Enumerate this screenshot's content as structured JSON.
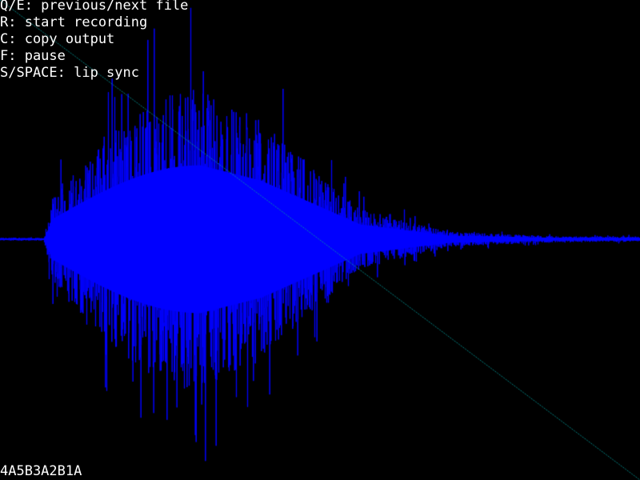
{
  "help": [
    "Q/E: previous/next file",
    "R: start recording",
    "C: copy output",
    "F: pause",
    "S/SPACE: lip sync"
  ],
  "output": "4A5B3A2B1A",
  "colors": {
    "background": "#000000",
    "text": "#ffffff",
    "waveform": "#0000ff",
    "playhead": "#00a0a0"
  },
  "playback": {
    "progress": 1.0
  }
}
